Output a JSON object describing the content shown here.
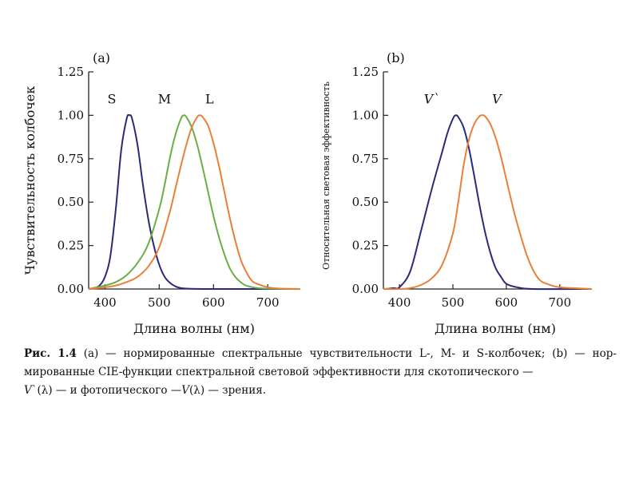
{
  "chart_data": [
    {
      "type": "line",
      "panel_label": "(a)",
      "xlabel": "Длина волны (нм)",
      "ylabel": "Чувствительность колбочек",
      "xlim": [
        370,
        760
      ],
      "ylim": [
        0,
        1.25
      ],
      "x_ticks": [
        "400",
        "500",
        "600",
        "700"
      ],
      "y_ticks": [
        "0.00",
        "0.25",
        "0.50",
        "0.75",
        "1.00",
        "1.25"
      ],
      "series": [
        {
          "name": "S",
          "color": "#2a2a7a",
          "x": [
            370,
            380,
            390,
            400,
            410,
            420,
            430,
            440,
            445,
            450,
            460,
            470,
            480,
            490,
            500,
            510,
            520,
            530,
            540,
            560,
            600,
            700,
            760
          ],
          "y": [
            0.0,
            0.005,
            0.02,
            0.07,
            0.19,
            0.46,
            0.8,
            0.98,
            1.0,
            0.98,
            0.83,
            0.6,
            0.4,
            0.25,
            0.14,
            0.07,
            0.035,
            0.015,
            0.005,
            0.001,
            0.0,
            0.0,
            0.0
          ]
        },
        {
          "name": "M",
          "color": "#6aae45",
          "x": [
            370,
            400,
            420,
            440,
            460,
            480,
            500,
            510,
            520,
            530,
            540,
            545,
            550,
            560,
            570,
            580,
            590,
            600,
            610,
            620,
            630,
            640,
            650,
            660,
            680,
            700,
            760
          ],
          "y": [
            0.0,
            0.02,
            0.04,
            0.08,
            0.15,
            0.26,
            0.46,
            0.6,
            0.76,
            0.89,
            0.98,
            1.0,
            0.99,
            0.93,
            0.83,
            0.7,
            0.56,
            0.42,
            0.3,
            0.2,
            0.12,
            0.07,
            0.04,
            0.02,
            0.006,
            0.002,
            0.0
          ]
        },
        {
          "name": "L",
          "color": "#e8803a",
          "x": [
            370,
            400,
            420,
            440,
            460,
            480,
            500,
            520,
            530,
            540,
            550,
            560,
            570,
            575,
            580,
            590,
            600,
            610,
            620,
            630,
            640,
            650,
            660,
            670,
            680,
            700,
            720,
            760
          ],
          "y": [
            0.0,
            0.01,
            0.02,
            0.04,
            0.07,
            0.13,
            0.24,
            0.45,
            0.58,
            0.71,
            0.83,
            0.93,
            0.99,
            1.0,
            0.99,
            0.94,
            0.84,
            0.71,
            0.56,
            0.41,
            0.28,
            0.17,
            0.1,
            0.05,
            0.03,
            0.01,
            0.003,
            0.0
          ]
        }
      ]
    },
    {
      "type": "line",
      "panel_label": "(b)",
      "xlabel": "Длина волны (нм)",
      "ylabel": "Относительная световая эффективность",
      "xlim": [
        370,
        760
      ],
      "ylim": [
        0,
        1.25
      ],
      "x_ticks": [
        "400",
        "500",
        "600",
        "700"
      ],
      "y_ticks": [
        "0.00",
        "0.25",
        "0.50",
        "0.75",
        "1.00",
        "1.25"
      ],
      "series": [
        {
          "name": "V`",
          "color": "#2a2a7a",
          "x": [
            370,
            380,
            390,
            400,
            420,
            440,
            460,
            480,
            490,
            500,
            505,
            510,
            520,
            530,
            540,
            550,
            560,
            570,
            580,
            590,
            600,
            620,
            650,
            760
          ],
          "y": [
            0.0,
            0.002,
            0.005,
            0.01,
            0.1,
            0.33,
            0.57,
            0.79,
            0.9,
            0.98,
            1.0,
            0.99,
            0.93,
            0.81,
            0.65,
            0.48,
            0.33,
            0.21,
            0.12,
            0.07,
            0.03,
            0.01,
            0.0,
            0.0
          ]
        },
        {
          "name": "V",
          "color": "#e8803a",
          "x": [
            370,
            400,
            420,
            440,
            460,
            480,
            500,
            510,
            520,
            530,
            540,
            550,
            555,
            560,
            570,
            580,
            590,
            600,
            610,
            620,
            640,
            660,
            680,
            700,
            740,
            760
          ],
          "y": [
            0.0,
            0.0,
            0.005,
            0.023,
            0.06,
            0.14,
            0.32,
            0.5,
            0.71,
            0.86,
            0.95,
            0.995,
            1.0,
            0.995,
            0.95,
            0.87,
            0.76,
            0.63,
            0.5,
            0.38,
            0.18,
            0.06,
            0.025,
            0.01,
            0.003,
            0.0
          ]
        }
      ]
    }
  ],
  "caption": {
    "fig_number": "Рис. 1.4",
    "line1_text": " (a) — нормированные спектральные чувствительности L-, M- и S-колбочек; (b) — нор-",
    "line2_text": "мированные CIE-функции спектральной световой эффективности для скотопического —",
    "line3_prefix": "V",
    "line3_mid": "`(λ) — и фотопического —",
    "line3_v": "V",
    "line3_suffix": "(λ) — зрения."
  }
}
